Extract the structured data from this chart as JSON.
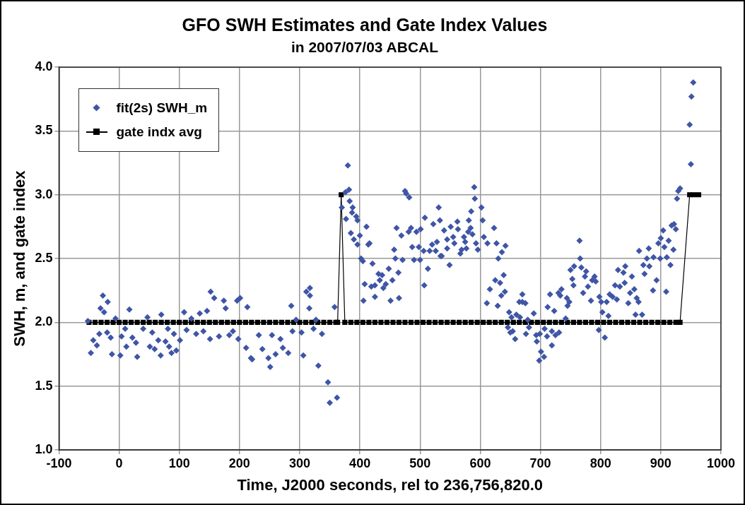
{
  "chart_data": {
    "type": "scatter",
    "title": "GFO SWH Estimates and Gate Index Values",
    "subtitle": "in 2007/07/03 ABCAL",
    "xlabel": "Time, J2000 seconds, rel to 236,756,820.0",
    "ylabel": "SWH, m, and gate index",
    "xlim": [
      -100,
      1000
    ],
    "xticks": [
      -100,
      0,
      100,
      200,
      300,
      400,
      500,
      600,
      700,
      800,
      900,
      1000
    ],
    "ylim": [
      1,
      4
    ],
    "yticks": [
      {
        "value": 1,
        "label": "1.0"
      },
      {
        "value": 1.5,
        "label": "1.5"
      },
      {
        "value": 2,
        "label": "2.0"
      },
      {
        "value": 2.5,
        "label": "2.5"
      },
      {
        "value": 3,
        "label": "3.0"
      },
      {
        "value": 3.5,
        "label": "3.5"
      },
      {
        "value": 4,
        "label": "4.0"
      }
    ],
    "grid": true,
    "legend": "top left",
    "series": [
      {
        "name": "fit(2s) SWH_m",
        "marker": "diamond",
        "color": "#3f55a6",
        "x": [
          -52,
          -27,
          -19,
          -31,
          -25,
          -47,
          -43,
          -37,
          -33,
          -12,
          -20,
          -6,
          -14,
          2,
          4,
          12,
          17,
          10,
          22,
          30,
          28,
          40,
          47,
          51,
          55,
          59,
          65,
          69,
          70,
          77,
          81,
          83,
          87,
          91,
          95,
          101,
          108,
          112,
          120,
          128,
          134,
          140,
          146,
          152,
          151,
          158,
          166,
          174,
          177,
          183,
          189,
          196,
          201,
          198,
          213,
          211,
          219,
          221,
          232,
          238,
          248,
          251,
          254,
          260,
          268,
          272,
          281,
          286,
          288,
          294,
          303,
          306,
          311,
          317,
          317,
          316,
          323,
          327,
          331,
          337,
          347,
          350,
          362,
          358,
          370,
          376,
          380,
          382,
          383,
          377,
          388,
          387,
          394,
          396,
          385,
          390,
          396,
          400,
          411,
          402,
          405,
          414,
          416,
          408,
          406,
          419,
          421,
          425,
          425,
          431,
          433,
          437,
          439,
          443,
          448,
          451,
          454,
          457,
          459,
          461,
          464,
          465,
          469,
          471,
          475,
          477,
          482,
          481,
          485,
          487,
          490,
          494,
          498,
          501,
          500,
          508,
          507,
          506,
          513,
          516,
          520,
          522,
          526,
          528,
          531,
          533,
          534,
          536,
          540,
          545,
          545,
          549,
          551,
          555,
          557,
          562,
          563,
          567,
          569,
          573,
          575,
          577,
          581,
          580,
          585,
          584,
          587,
          590,
          591,
          593,
          596,
          602,
          604,
          606,
          611,
          612,
          616,
          623,
          625,
          627,
          629,
          630,
          633,
          635,
          636,
          639,
          641,
          642,
          648,
          646,
          650,
          652,
          654,
          658,
          660,
          665,
          666,
          670,
          670,
          675,
          676,
          679,
          681,
          689,
          693,
          694,
          699,
          701,
          698,
          706,
          707,
          711,
          712,
          716,
          719,
          719,
          723,
          725,
          731,
          730,
          733,
          735,
          742,
          744,
          745,
          748,
          750,
          753,
          755,
          756,
          765,
          766,
          768,
          771,
          774,
          776,
          779,
          784,
          786,
          790,
          792,
          797,
          798,
          801,
          803,
          807,
          810,
          813,
          815,
          820,
          824,
          827,
          829,
          832,
          838,
          840,
          841,
          846,
          849,
          852,
          856,
          858,
          860,
          863,
          864,
          869,
          871,
          873,
          877,
          880,
          881,
          887,
          888,
          893,
          896,
          899,
          900,
          904,
          906,
          909,
          910,
          913,
          916,
          918,
          921,
          922,
          925,
          927,
          929,
          932,
          948,
          950,
          951,
          954
        ],
        "values": [
          2.01,
          2.21,
          2.16,
          2.11,
          2.08,
          1.76,
          1.86,
          1.82,
          1.91,
          1.75,
          1.92,
          2.03,
          1.88,
          1.74,
          1.89,
          1.81,
          2.1,
          1.95,
          1.88,
          1.73,
          1.84,
          1.95,
          2.04,
          1.81,
          1.92,
          1.79,
          1.86,
          1.74,
          2.06,
          1.85,
          1.95,
          1.81,
          1.76,
          1.91,
          1.78,
          1.86,
          2.08,
          1.94,
          2.03,
          1.91,
          2.07,
          1.93,
          2.09,
          2.24,
          1.87,
          2.19,
          1.89,
          2.17,
          2.11,
          1.9,
          1.93,
          2.17,
          2.19,
          1.87,
          2.12,
          1.8,
          1.72,
          1.71,
          1.9,
          1.79,
          1.72,
          1.65,
          1.9,
          1.75,
          1.87,
          1.8,
          1.76,
          2.13,
          1.93,
          2.02,
          1.92,
          1.74,
          2.24,
          2.27,
          2.21,
          2.11,
          1.95,
          2.02,
          1.66,
          1.91,
          1.53,
          1.37,
          1.41,
          2.12,
          2.9,
          3.02,
          3.23,
          3.04,
          2.95,
          2.81,
          2.9,
          2.86,
          2.83,
          2.8,
          2.7,
          2.65,
          2.61,
          2.68,
          2.75,
          2.5,
          2.48,
          2.61,
          2.62,
          2.3,
          2.17,
          2.28,
          2.46,
          2.29,
          2.2,
          2.38,
          2.33,
          2.37,
          2.27,
          2.3,
          2.42,
          2.17,
          2.33,
          2.57,
          2.5,
          2.74,
          2.39,
          2.19,
          2.68,
          2.49,
          3.03,
          3.01,
          2.98,
          2.71,
          2.74,
          2.59,
          2.49,
          2.71,
          2.59,
          2.73,
          2.49,
          2.82,
          2.29,
          2.56,
          2.42,
          2.56,
          2.61,
          2.77,
          2.56,
          2.63,
          2.9,
          2.8,
          2.52,
          2.52,
          2.72,
          2.65,
          2.58,
          2.45,
          2.75,
          2.67,
          2.62,
          2.79,
          2.73,
          2.54,
          2.57,
          2.67,
          2.63,
          2.58,
          2.8,
          2.71,
          2.87,
          2.74,
          2.69,
          3.06,
          2.97,
          2.62,
          2.57,
          2.9,
          2.8,
          2.67,
          2.15,
          2.62,
          2.26,
          2.74,
          2.33,
          2.62,
          2.13,
          2.5,
          2.31,
          2.21,
          2.55,
          2.37,
          2.24,
          2.6,
          2.08,
          1.96,
          1.92,
          2.04,
          1.93,
          1.87,
          2.06,
          2.16,
          2.04,
          2.22,
          2.16,
          2.15,
          1.91,
          2.02,
          1.96,
          2.07,
          1.9,
          1.85,
          1.91,
          1.77,
          1.7,
          1.73,
          1.95,
          1.89,
          2.12,
          2.22,
          1.93,
          1.82,
          2.09,
          1.9,
          1.92,
          2.23,
          2.21,
          2.26,
          2.03,
          2.19,
          2.13,
          2.16,
          2.41,
          2.34,
          2.29,
          2.44,
          2.64,
          2.5,
          2.43,
          2.23,
          2.36,
          2.4,
          2.28,
          2.17,
          2.33,
          2.36,
          2.32,
          1.94,
          2.2,
          2.16,
          2.08,
          1.88,
          2.16,
          2.05,
          2.22,
          2.2,
          2.29,
          2.18,
          2.41,
          2.28,
          2.39,
          2.31,
          2.44,
          2.15,
          2.23,
          2.36,
          2.26,
          2.06,
          2.19,
          2.16,
          2.56,
          2.06,
          2.45,
          2.38,
          2.5,
          2.58,
          2.44,
          2.25,
          2.51,
          2.33,
          2.62,
          2.5,
          2.66,
          2.72,
          2.59,
          2.24,
          2.51,
          2.64,
          2.45,
          2.76,
          2.57,
          2.77,
          2.73,
          2.97,
          3.03,
          3.05,
          3.55,
          3.24,
          3.77,
          3.88
        ]
      },
      {
        "name": "gate indx avg",
        "type": "line",
        "marker": "square",
        "line_style": "solid",
        "color": "#000000",
        "x": [
          -50,
          -40,
          -30,
          -20,
          -10,
          0,
          10,
          20,
          30,
          40,
          50,
          60,
          70,
          80,
          90,
          100,
          110,
          120,
          130,
          140,
          150,
          160,
          170,
          180,
          190,
          200,
          210,
          220,
          230,
          240,
          250,
          260,
          270,
          280,
          290,
          300,
          310,
          320,
          330,
          340,
          350,
          360,
          363,
          369,
          375,
          385,
          395,
          405,
          415,
          425,
          435,
          445,
          455,
          465,
          475,
          485,
          495,
          505,
          515,
          525,
          535,
          545,
          555,
          565,
          575,
          585,
          595,
          605,
          615,
          625,
          635,
          645,
          655,
          665,
          675,
          685,
          695,
          705,
          715,
          725,
          735,
          745,
          755,
          765,
          775,
          785,
          795,
          805,
          815,
          825,
          835,
          845,
          855,
          865,
          875,
          885,
          895,
          905,
          915,
          925,
          932,
          948,
          955,
          963
        ],
        "values": [
          2,
          2,
          2,
          2,
          2,
          2,
          2,
          2,
          2,
          2,
          2,
          2,
          2,
          2,
          2,
          2,
          2,
          2,
          2,
          2,
          2,
          2,
          2,
          2,
          2,
          2,
          2,
          2,
          2,
          2,
          2,
          2,
          2,
          2,
          2,
          2,
          2,
          2,
          2,
          2,
          2,
          2,
          2,
          3,
          2,
          2,
          2,
          2,
          2,
          2,
          2,
          2,
          2,
          2,
          2,
          2,
          2,
          2,
          2,
          2,
          2,
          2,
          2,
          2,
          2,
          2,
          2,
          2,
          2,
          2,
          2,
          2,
          2,
          2,
          2,
          2,
          2,
          2,
          2,
          2,
          2,
          2,
          2,
          2,
          2,
          2,
          2,
          2,
          2,
          2,
          2,
          2,
          2,
          2,
          2,
          2,
          2,
          2,
          2,
          2,
          2,
          3,
          3,
          3
        ]
      }
    ]
  }
}
